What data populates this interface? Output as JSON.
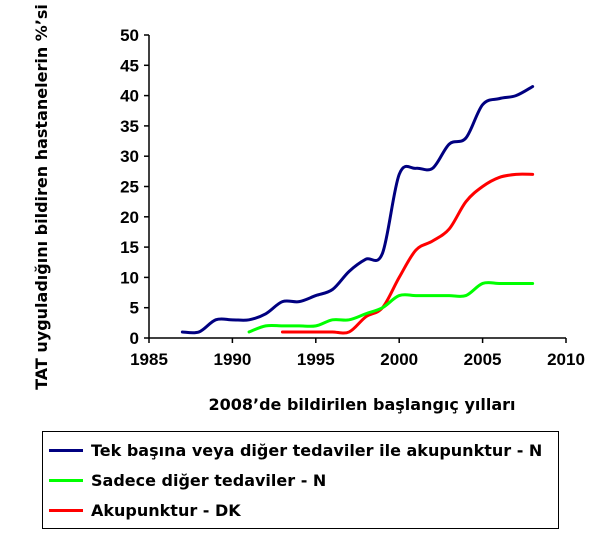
{
  "chart_data": {
    "type": "line",
    "xlabel": "2008’de bildirilen başlangıç yılları",
    "ylabel": "TAT uyguladığını bildiren hastanelerin %’si",
    "xlim": [
      1985,
      2010
    ],
    "ylim": [
      0,
      50
    ],
    "xticks": [
      1985,
      1990,
      1995,
      2000,
      2005,
      2010
    ],
    "yticks": [
      0,
      5,
      10,
      15,
      20,
      25,
      30,
      35,
      40,
      45,
      50
    ],
    "grid": false,
    "legend_position": "bottom",
    "series": [
      {
        "name": "Tek başına veya diğer tedaviler ile akupunktur - N",
        "color": "#000080",
        "x": [
          1987,
          1988,
          1989,
          1990,
          1991,
          1992,
          1993,
          1994,
          1995,
          1996,
          1997,
          1998,
          1999,
          2000,
          2001,
          2002,
          2003,
          2004,
          2005,
          2006,
          2007,
          2008
        ],
        "y": [
          1,
          1,
          3,
          3,
          3,
          4,
          6,
          6,
          7,
          8,
          11,
          13,
          14,
          27,
          28,
          28,
          32,
          33,
          38.5,
          39.5,
          40,
          41.5
        ]
      },
      {
        "name": "Sadece diğer tedaviler - N",
        "color": "#00ff00",
        "x": [
          1991,
          1992,
          1993,
          1994,
          1995,
          1996,
          1997,
          1998,
          1999,
          2000,
          2001,
          2002,
          2003,
          2004,
          2005,
          2006,
          2007,
          2008
        ],
        "y": [
          1,
          2,
          2,
          2,
          2,
          3,
          3,
          4,
          5,
          7,
          7,
          7,
          7,
          7,
          9,
          9,
          9,
          9
        ]
      },
      {
        "name": "Akupunktur - DK",
        "color": "#ff0000",
        "x": [
          1993,
          1994,
          1995,
          1996,
          1997,
          1998,
          1999,
          2000,
          2001,
          2002,
          2003,
          2004,
          2005,
          2006,
          2007,
          2008
        ],
        "y": [
          1,
          1,
          1,
          1,
          1,
          3.5,
          5,
          10,
          14.5,
          16,
          18,
          22.5,
          25,
          26.5,
          27,
          27
        ]
      }
    ]
  }
}
